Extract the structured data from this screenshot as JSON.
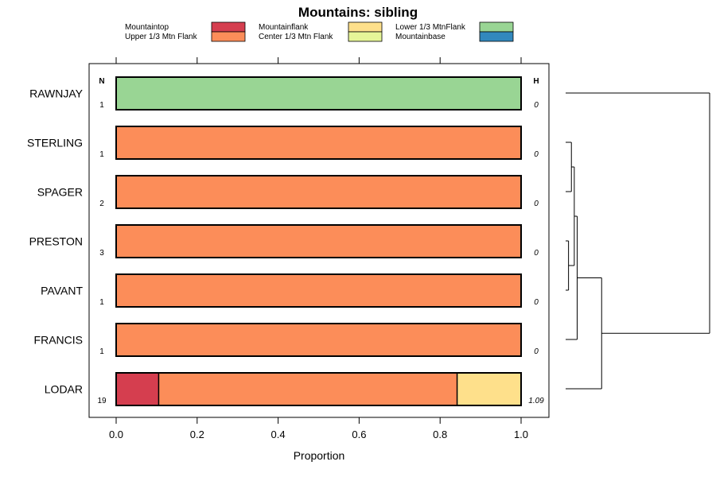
{
  "chart_data": {
    "type": "bar",
    "orientation": "horizontal",
    "stacked": true,
    "title": "Mountains: sibling",
    "xlabel": "Proportion",
    "ylabel": "",
    "xlim": [
      0,
      1
    ],
    "xticks": [
      0.0,
      0.2,
      0.4,
      0.6,
      0.8,
      1.0
    ],
    "xtick_labels": [
      "0.0",
      "0.2",
      "0.4",
      "0.6",
      "0.8",
      "1.0"
    ],
    "n_header": "N",
    "h_header": "H",
    "legend": [
      {
        "name": "Mountaintop",
        "color": "#d53e4f"
      },
      {
        "name": "Upper 1/3 Mtn Flank",
        "color": "#fc8d59"
      },
      {
        "name": "Mountainflank",
        "color": "#fee08b"
      },
      {
        "name": "Center 1/3 Mtn Flank",
        "color": "#e6f598"
      },
      {
        "name": "Lower 1/3 MtnFlank",
        "color": "#99d594"
      },
      {
        "name": "Mountainbase",
        "color": "#3288bd"
      }
    ],
    "categories": [
      "RAWNJAY",
      "STERLING",
      "SPAGER",
      "PRESTON",
      "PAVANT",
      "FRANCIS",
      "LODAR"
    ],
    "n_values": [
      "1",
      "1",
      "2",
      "3",
      "1",
      "1",
      "19"
    ],
    "h_values": [
      "0",
      "0",
      "0",
      "0",
      "0",
      "0",
      "1.09"
    ],
    "series": [
      {
        "name": "Mountaintop",
        "values": [
          0,
          0,
          0,
          0,
          0,
          0,
          0.105
        ]
      },
      {
        "name": "Upper 1/3 Mtn Flank",
        "values": [
          0,
          1,
          1,
          1,
          1,
          1,
          0.737
        ]
      },
      {
        "name": "Mountainflank",
        "values": [
          0,
          0,
          0,
          0,
          0,
          0,
          0.158
        ]
      },
      {
        "name": "Center 1/3 Mtn Flank",
        "values": [
          0,
          0,
          0,
          0,
          0,
          0,
          0
        ]
      },
      {
        "name": "Lower 1/3 MtnFlank",
        "values": [
          1,
          0,
          0,
          0,
          0,
          0,
          0
        ]
      },
      {
        "name": "Mountainbase",
        "values": [
          0,
          0,
          0,
          0,
          0,
          0,
          0
        ]
      }
    ],
    "dendrogram": {
      "leaf_order": [
        "RAWNJAY",
        "STERLING",
        "SPAGER",
        "PRESTON",
        "PAVANT",
        "FRANCIS",
        "LODAR"
      ],
      "merges": [
        {
          "a": "STERLING",
          "b": "SPAGER",
          "height": 0.04
        },
        {
          "a": "PRESTON",
          "b": "PAVANT",
          "height": 0.02
        },
        {
          "a": "STERLING+SPAGER",
          "b": "PRESTON+PAVANT",
          "height": 0.06
        },
        {
          "a": "STERLING+SPAGER+PRESTON+PAVANT",
          "b": "FRANCIS",
          "height": 0.08
        },
        {
          "a": "STERLING+SPAGER+PRESTON+PAVANT+FRANCIS",
          "b": "LODAR",
          "height": 0.25
        },
        {
          "a": "RAWNJAY",
          "b": "REST",
          "height": 1.0
        }
      ]
    }
  }
}
